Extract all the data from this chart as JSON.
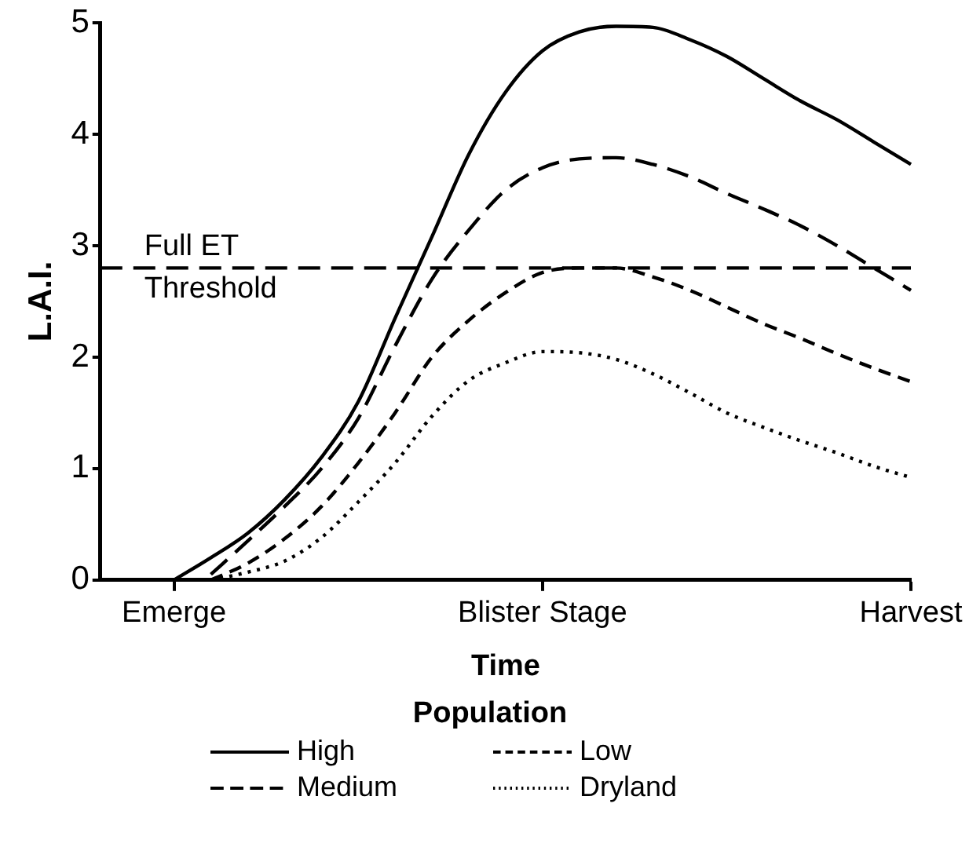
{
  "chart_data": {
    "type": "line",
    "xlabel": "Time",
    "ylabel": "L.A.I.",
    "legend_title": "Population",
    "legend": "bottom",
    "categories": [
      null,
      null,
      "Emerge",
      null,
      null,
      null,
      null,
      null,
      null,
      null,
      null,
      null,
      "Blister Stage",
      null,
      null,
      null,
      null,
      null,
      null,
      null,
      null,
      null,
      "Harvest"
    ],
    "ylim": [
      0,
      5
    ],
    "yticks": [
      0,
      1,
      2,
      3,
      4,
      5
    ],
    "grid": false,
    "marker": "none",
    "series": [
      {
        "name": "High",
        "color": "#000000",
        "line_style": "solid",
        "values": [
          null,
          null,
          0,
          0.2,
          0.42,
          0.72,
          1.1,
          1.6,
          2.35,
          3.08,
          3.82,
          4.38,
          4.75,
          4.92,
          4.97,
          4.96,
          4.85,
          4.7,
          4.5,
          4.3,
          4.13,
          3.93,
          3.73
        ]
      },
      {
        "name": "Low",
        "color": "#000000",
        "line_style": "dashed",
        "values": [
          null,
          null,
          null,
          0,
          0.15,
          0.37,
          0.66,
          1.05,
          1.5,
          2.0,
          2.33,
          2.58,
          2.76,
          2.8,
          2.8,
          2.72,
          2.6,
          2.45,
          2.3,
          2.17,
          2.03,
          1.9,
          1.78
        ]
      },
      {
        "name": "Medium",
        "color": "#000000",
        "line_style": "longdash",
        "values": [
          null,
          null,
          null,
          0.05,
          0.35,
          0.66,
          1.0,
          1.45,
          2.1,
          2.7,
          3.14,
          3.5,
          3.7,
          3.78,
          3.79,
          3.73,
          3.62,
          3.47,
          3.33,
          3.18,
          3.0,
          2.8,
          2.6
        ]
      },
      {
        "name": "Dryland",
        "color": "#000000",
        "line_style": "dotted",
        "values": [
          null,
          null,
          null,
          0,
          0.07,
          0.17,
          0.38,
          0.7,
          1.05,
          1.47,
          1.79,
          1.95,
          2.05,
          2.04,
          1.98,
          1.85,
          1.68,
          1.5,
          1.37,
          1.25,
          1.14,
          1.02,
          0.92
        ]
      }
    ],
    "ref_lines": [
      {
        "axis": "y",
        "value": 2.8,
        "label": "Full ET Threshold",
        "color": "#000000",
        "line_style": "longdash"
      }
    ]
  }
}
